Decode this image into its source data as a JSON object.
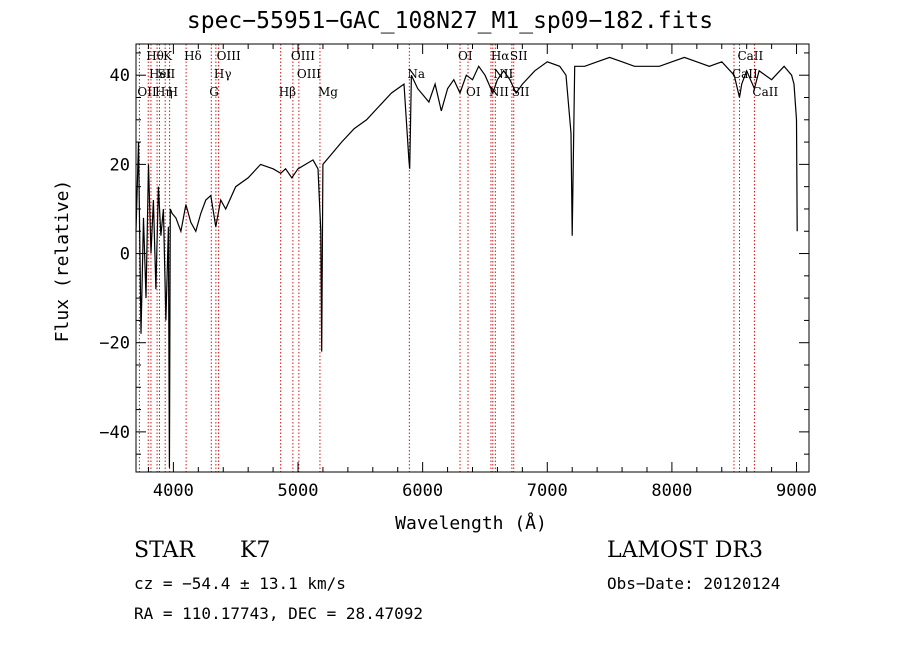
{
  "chart_data": {
    "type": "line",
    "title": "spec−55951−GAC_108N27_M1_sp09−182.fits",
    "xlabel": "Wavelength (Å)",
    "ylabel": "Flux (relative)",
    "xlim": [
      3700,
      9100
    ],
    "ylim": [
      -49,
      47
    ],
    "x_ticks": [
      4000,
      5000,
      6000,
      7000,
      8000,
      9000
    ],
    "x_tick_labels": [
      "4000",
      "5000",
      "6000",
      "7000",
      "8000",
      "9000"
    ],
    "y_ticks": [
      40,
      20,
      0,
      -20,
      -40
    ],
    "y_tick_labels": [
      "40",
      "20",
      "0",
      "−20",
      "−40"
    ],
    "series": [
      {
        "name": "spectrum",
        "x": [
          3700,
          3720,
          3740,
          3760,
          3780,
          3800,
          3820,
          3840,
          3860,
          3880,
          3900,
          3920,
          3940,
          3960,
          3968,
          3975,
          3990,
          4020,
          4060,
          4100,
          4140,
          4180,
          4220,
          4260,
          4300,
          4340,
          4380,
          4420,
          4500,
          4600,
          4700,
          4800,
          4861,
          4900,
          4950,
          5000,
          5060,
          5120,
          5160,
          5183,
          5190,
          5200,
          5260,
          5350,
          5450,
          5550,
          5650,
          5750,
          5850,
          5890,
          5896,
          5910,
          5960,
          6050,
          6100,
          6150,
          6200,
          6250,
          6300,
          6350,
          6400,
          6450,
          6500,
          6563,
          6600,
          6650,
          6700,
          6750,
          6800,
          6900,
          7000,
          7100,
          7150,
          7190,
          7200,
          7220,
          7300,
          7400,
          7500,
          7600,
          7700,
          7800,
          7900,
          8000,
          8100,
          8200,
          8300,
          8400,
          8500,
          8542,
          8560,
          8600,
          8662,
          8700,
          8800,
          8900,
          8960,
          8980,
          9000,
          9005
        ],
        "y": [
          5,
          25,
          -18,
          8,
          -10,
          20,
          0,
          12,
          -8,
          15,
          4,
          10,
          -15,
          6,
          -48,
          10,
          9,
          8,
          5,
          11,
          7,
          5,
          9,
          12,
          13,
          6,
          12,
          10,
          15,
          17,
          20,
          19,
          18,
          19,
          17,
          19,
          20,
          21,
          19,
          5,
          -22,
          20,
          22,
          25,
          28,
          30,
          33,
          36,
          38,
          21,
          19,
          40,
          37,
          34,
          38,
          32,
          37,
          39,
          36,
          40,
          39,
          42,
          40,
          36,
          39,
          41,
          39,
          36,
          38,
          41,
          43,
          42,
          40,
          27,
          4,
          42,
          42,
          43,
          44,
          43,
          42,
          42,
          42,
          43,
          44,
          43,
          42,
          43,
          40,
          35,
          38,
          41,
          37,
          41,
          39,
          42,
          40,
          38,
          30,
          5
        ]
      }
    ],
    "line_markers": [
      {
        "wave": 3727,
        "label": "OII",
        "row": 3
      },
      {
        "wave": 3798,
        "label": "Hθ",
        "row": 1
      },
      {
        "wave": 3820,
        "label": "HeI",
        "row": 2
      },
      {
        "wave": 3869,
        "label": "Hη",
        "row": 3
      },
      {
        "wave": 3934,
        "label": "K",
        "row": 1
      },
      {
        "wave": 3889,
        "label": "SII",
        "row": 2
      },
      {
        "wave": 3970,
        "label": "H",
        "row": 3
      },
      {
        "wave": 4102,
        "label": "Hδ",
        "row": 1
      },
      {
        "wave": 4304,
        "label": "G",
        "row": 3
      },
      {
        "wave": 4341,
        "label": "Hγ",
        "row": 2
      },
      {
        "wave": 4363,
        "label": "OIII",
        "row": 1
      },
      {
        "wave": 4861,
        "label": "Hβ",
        "row": 3
      },
      {
        "wave": 4959,
        "label": "OIII",
        "row": 1
      },
      {
        "wave": 5007,
        "label": "OIII",
        "row": 2
      },
      {
        "wave": 5176,
        "label": "Mg",
        "row": 3
      },
      {
        "wave": 5893,
        "label": "Na",
        "row": 2
      },
      {
        "wave": 6300,
        "label": "OI",
        "row": 1
      },
      {
        "wave": 6364,
        "label": "OI",
        "row": 3
      },
      {
        "wave": 6548,
        "label": "NII",
        "row": 3
      },
      {
        "wave": 6563,
        "label": "Hα",
        "row": 1
      },
      {
        "wave": 6583,
        "label": "NII",
        "row": 2
      },
      {
        "wave": 6716,
        "label": "SII",
        "row": 1
      },
      {
        "wave": 6731,
        "label": "SII",
        "row": 3
      },
      {
        "wave": 8498,
        "label": "CaII",
        "row": 2
      },
      {
        "wave": 8542,
        "label": "CaII",
        "row": 1
      },
      {
        "wave": 8662,
        "label": "CaII",
        "row": 3
      }
    ],
    "colors": {
      "spectrum": "#000000",
      "markers": "#cc0000",
      "axes": "#000000"
    }
  },
  "info": {
    "object_class": "STAR",
    "subclass": "K7",
    "survey": "LAMOST DR3",
    "cz": "cz = −54.4 ± 13.1 km/s",
    "obs_date": "Obs−Date: 20120124",
    "coords": "RA = 110.17743, DEC =  28.47092"
  }
}
